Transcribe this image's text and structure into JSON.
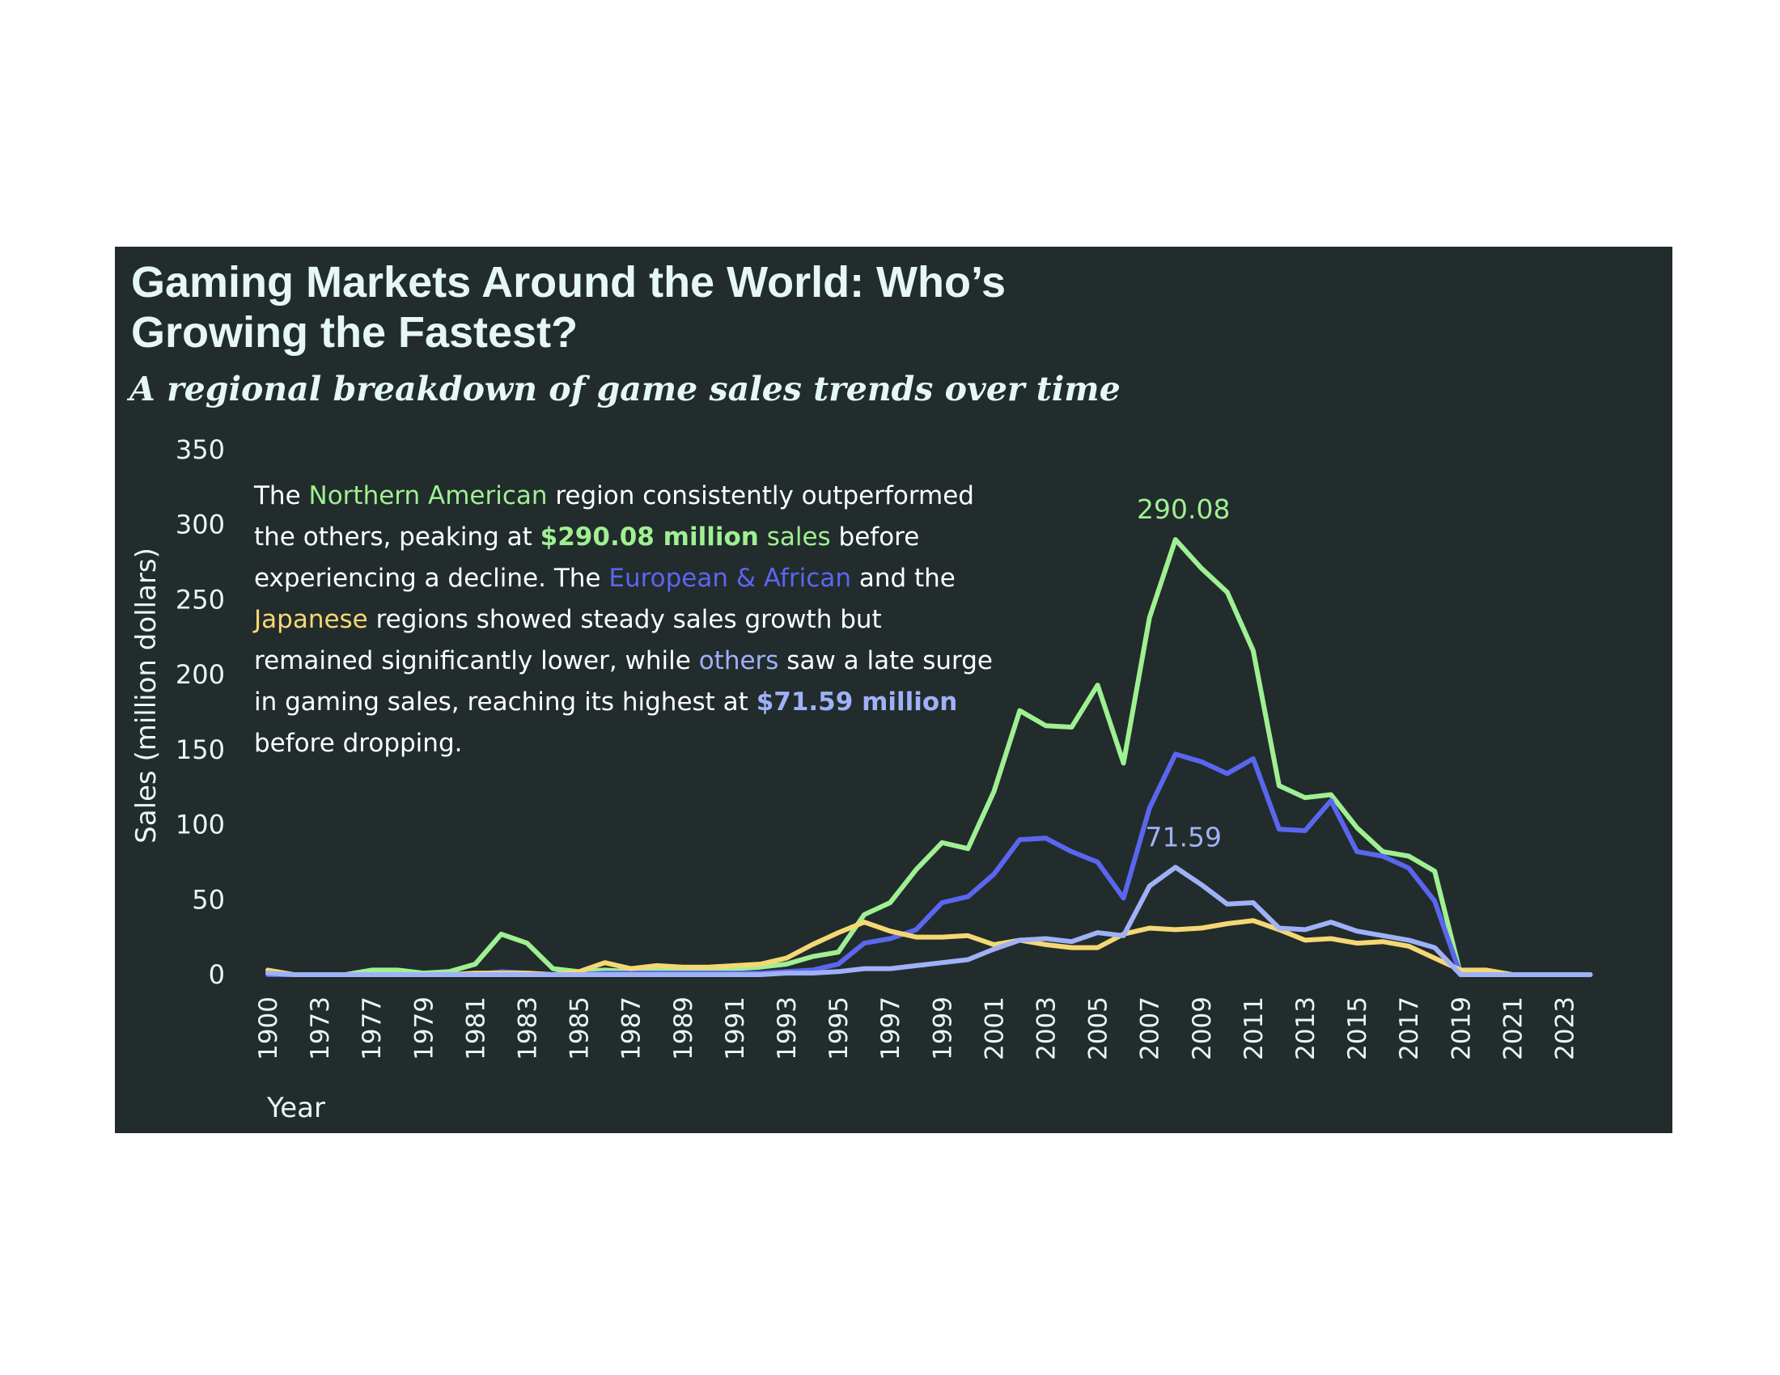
{
  "header": {
    "title": "Gaming Markets Around the World: Who’s Growing the Fastest?",
    "subtitle": "A regional breakdown of game sales trends over time"
  },
  "annotation": {
    "t1": "The ",
    "t2": "Northern American",
    "t3": " region consistently outperformed the others, peaking at ",
    "t4": "$290.08 million",
    "t5": " ",
    "t6": "sales",
    "t7": " before experiencing a decline. The ",
    "t8": "European & African",
    "t9": " and the ",
    "t10": "Japanese",
    "t11": " regions showed steady sales growth but remained significantly lower, while ",
    "t12": "others",
    "t13": " saw a late surge in gaming sales, reaching its highest at ",
    "t14": "$71.59 million",
    "t15": " before dropping."
  },
  "colors": {
    "background": "#222c2c",
    "north_america": "#9ff092",
    "europe_africa": "#5b66f0",
    "japan": "#f5d874",
    "other": "#9fb1f7",
    "text": "#e6f7f7"
  },
  "chart_data": {
    "type": "line",
    "title": "Gaming Markets Around the World: Who’s Growing the Fastest?",
    "subtitle": "A regional breakdown of game sales trends over time",
    "xlabel": "Year",
    "ylabel": "Sales (million dollars)",
    "ylim": [
      0,
      350
    ],
    "yticks": [
      0,
      50,
      100,
      150,
      200,
      250,
      300,
      350
    ],
    "grid": false,
    "x": [
      "1900",
      "1971",
      "1973",
      "1975",
      "1977",
      "1978",
      "1979",
      "1980",
      "1981",
      "1982",
      "1983",
      "1984",
      "1985",
      "1986",
      "1987",
      "1988",
      "1989",
      "1990",
      "1991",
      "1992",
      "1993",
      "1994",
      "1995",
      "1996",
      "1997",
      "1998",
      "1999",
      "2000",
      "2001",
      "2002",
      "2003",
      "2004",
      "2005",
      "2006",
      "2007",
      "2008",
      "2009",
      "2010",
      "2011",
      "2012",
      "2013",
      "2014",
      "2015",
      "2016",
      "2017",
      "2018",
      "2019",
      "2020",
      "2021",
      "2022",
      "2023",
      "2024"
    ],
    "xticks": [
      "1900",
      "1973",
      "1977",
      "1979",
      "1981",
      "1983",
      "1985",
      "1987",
      "1989",
      "1991",
      "1993",
      "1995",
      "1997",
      "1999",
      "2001",
      "2003",
      "2005",
      "2007",
      "2009",
      "2011",
      "2013",
      "2015",
      "2017",
      "2019",
      "2021",
      "2023"
    ],
    "series": [
      {
        "name": "Northern American",
        "color": "#9ff092",
        "values": [
          1,
          0,
          0,
          0,
          3,
          3,
          1,
          2,
          7,
          27,
          21,
          4,
          2,
          3,
          2,
          4,
          3,
          3,
          4,
          5,
          7,
          12,
          15,
          40,
          48,
          70,
          88,
          84,
          122,
          176,
          166,
          165,
          193,
          141,
          238,
          290.08,
          271,
          255,
          216,
          126,
          118,
          120,
          98,
          82,
          79,
          69,
          0,
          0,
          0,
          0,
          0,
          0
        ]
      },
      {
        "name": "European & African",
        "color": "#5b66f0",
        "values": [
          0,
          0,
          0,
          0,
          0,
          0,
          0,
          0,
          0,
          2,
          1,
          0,
          0,
          1,
          1,
          1,
          1,
          1,
          1,
          1,
          2,
          3,
          7,
          21,
          24,
          30,
          48,
          52,
          67,
          90,
          91,
          82,
          75,
          51,
          111,
          147,
          142,
          134,
          144,
          97,
          96,
          116,
          82,
          79,
          71,
          49,
          0,
          0,
          0,
          0,
          0,
          0
        ]
      },
      {
        "name": "Japanese",
        "color": "#f5d874",
        "values": [
          3,
          0,
          0,
          0,
          0,
          0,
          0,
          0,
          1,
          1,
          1,
          0,
          2,
          8,
          4,
          6,
          5,
          5,
          6,
          7,
          11,
          20,
          28,
          35,
          29,
          25,
          25,
          26,
          20,
          23,
          20,
          18,
          18,
          27,
          31,
          30,
          31,
          34,
          36,
          30,
          23,
          24,
          21,
          22,
          19,
          11,
          3,
          3,
          0,
          0,
          0,
          0
        ]
      },
      {
        "name": "others",
        "color": "#9fb1f7",
        "values": [
          1,
          0,
          0,
          0,
          0,
          0,
          0,
          0,
          0,
          0,
          0,
          0,
          0,
          0,
          0,
          0,
          0,
          0,
          0,
          0,
          1,
          1,
          2,
          4,
          4,
          6,
          8,
          10,
          17,
          23,
          24,
          22,
          28,
          26,
          59,
          71.59,
          60,
          47,
          48,
          31,
          30,
          35,
          29,
          26,
          23,
          18,
          0,
          0,
          0,
          0,
          0,
          0
        ]
      }
    ],
    "annotations": [
      {
        "series": "Northern American",
        "x": "2008",
        "y": 290.08,
        "text": "290.08"
      },
      {
        "series": "others",
        "x": "2008",
        "y": 71.59,
        "text": "71.59"
      }
    ]
  }
}
